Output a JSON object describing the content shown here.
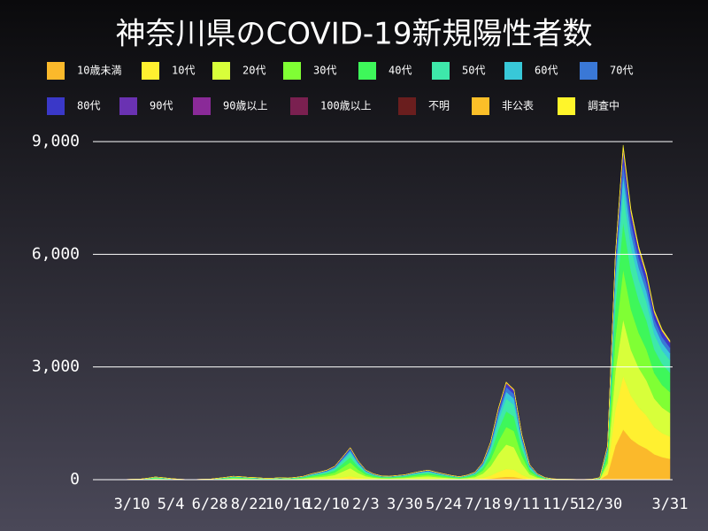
{
  "chart_data": {
    "type": "stacked-area",
    "title": "神奈川県のCOVID-19新規陽性者数",
    "categories": [
      null,
      null,
      null,
      null,
      null,
      "3/10",
      null,
      null,
      null,
      null,
      "5/4",
      null,
      null,
      null,
      null,
      "6/28",
      null,
      null,
      null,
      null,
      "8/22",
      null,
      null,
      null,
      null,
      "10/16",
      null,
      null,
      null,
      null,
      "12/10",
      null,
      null,
      null,
      null,
      "2/3",
      null,
      null,
      null,
      null,
      "3/30",
      null,
      null,
      null,
      null,
      "5/24",
      null,
      null,
      null,
      null,
      "7/18",
      null,
      null,
      null,
      null,
      "9/11",
      null,
      null,
      null,
      null,
      "11/5",
      null,
      null,
      null,
      null,
      "12/30",
      null,
      null,
      null,
      null,
      null,
      null,
      null,
      null,
      "3/31"
    ],
    "ylim": [
      0,
      9000
    ],
    "yticks": [
      0,
      {
        "value": 3000,
        "label": "3,000"
      },
      {
        "value": 6000,
        "label": "6,000"
      },
      {
        "value": 9000,
        "label": "9,000"
      }
    ],
    "grid": true,
    "series": [
      {
        "name": "10歳未満",
        "color": "#fbb92b",
        "values": [
          0,
          0,
          0,
          0,
          0,
          0,
          0,
          1,
          2,
          2,
          1,
          0,
          0,
          0,
          0,
          0,
          1,
          2,
          3,
          2,
          2,
          2,
          1,
          1,
          2,
          1,
          2,
          3,
          5,
          6,
          8,
          11,
          18,
          26,
          15,
          8,
          5,
          3,
          3,
          3,
          4,
          5,
          7,
          8,
          6,
          5,
          3,
          2,
          4,
          6,
          14,
          30,
          57,
          78,
          72,
          36,
          12,
          5,
          2,
          1,
          0,
          0,
          0,
          0,
          0,
          2,
          135,
          900,
          1335,
          1080,
          930,
          825,
          675,
          600,
          555
        ]
      },
      {
        "name": "10代",
        "color": "#fff030",
        "values": [
          0,
          0,
          0,
          0,
          0,
          1,
          1,
          3,
          6,
          4,
          2,
          1,
          0,
          0,
          1,
          1,
          3,
          5,
          7,
          6,
          5,
          4,
          3,
          3,
          4,
          4,
          5,
          7,
          12,
          16,
          20,
          28,
          48,
          68,
          40,
          20,
          12,
          8,
          7,
          9,
          10,
          14,
          18,
          20,
          16,
          12,
          9,
          6,
          10,
          16,
          36,
          80,
          152,
          208,
          192,
          96,
          32,
          12,
          4,
          2,
          1,
          1,
          1,
          1,
          1,
          4,
          144,
          960,
          1424,
          1152,
          992,
          880,
          720,
          640,
          592
        ]
      },
      {
        "name": "20代",
        "color": "#d8ff3a",
        "values": [
          0,
          0,
          0,
          1,
          1,
          3,
          4,
          10,
          18,
          13,
          8,
          4,
          1,
          1,
          3,
          4,
          10,
          15,
          23,
          20,
          15,
          13,
          10,
          10,
          13,
          11,
          15,
          23,
          38,
          50,
          63,
          88,
          150,
          213,
          125,
          63,
          38,
          25,
          23,
          28,
          33,
          45,
          55,
          63,
          50,
          38,
          28,
          20,
          30,
          50,
          113,
          250,
          475,
          650,
          600,
          300,
          100,
          38,
          13,
          5,
          4,
          3,
          2,
          2,
          3,
          13,
          153,
          1020,
          1513,
          1224,
          1054,
          935,
          765,
          680,
          629
        ]
      },
      {
        "name": "30代",
        "color": "#80ff34",
        "values": [
          0,
          0,
          0,
          1,
          1,
          2,
          3,
          7,
          13,
          9,
          5,
          3,
          1,
          1,
          2,
          3,
          7,
          11,
          16,
          14,
          11,
          9,
          7,
          7,
          9,
          8,
          11,
          16,
          27,
          36,
          45,
          63,
          108,
          153,
          90,
          45,
          27,
          18,
          16,
          20,
          23,
          32,
          40,
          45,
          36,
          27,
          20,
          14,
          22,
          36,
          81,
          180,
          342,
          468,
          432,
          216,
          72,
          27,
          9,
          4,
          3,
          2,
          1,
          1,
          2,
          9,
          135,
          900,
          1335,
          1080,
          930,
          825,
          675,
          600,
          555
        ]
      },
      {
        "name": "40代",
        "color": "#3ef75a",
        "values": [
          0,
          0,
          0,
          1,
          1,
          2,
          2,
          6,
          11,
          8,
          5,
          2,
          1,
          1,
          2,
          2,
          6,
          10,
          14,
          13,
          10,
          8,
          6,
          6,
          8,
          7,
          10,
          14,
          24,
          32,
          40,
          56,
          96,
          136,
          80,
          40,
          24,
          16,
          14,
          18,
          21,
          29,
          35,
          40,
          32,
          24,
          18,
          13,
          19,
          32,
          72,
          160,
          304,
          416,
          384,
          192,
          64,
          24,
          8,
          3,
          2,
          2,
          1,
          1,
          2,
          8,
          126,
          840,
          1246,
          1008,
          868,
          770,
          630,
          560,
          518
        ]
      },
      {
        "name": "50代",
        "color": "#3ee8aa",
        "values": [
          0,
          0,
          0,
          1,
          1,
          1,
          2,
          5,
          9,
          7,
          4,
          2,
          1,
          1,
          1,
          2,
          5,
          8,
          12,
          10,
          8,
          7,
          5,
          5,
          7,
          6,
          8,
          12,
          20,
          26,
          33,
          46,
          78,
          111,
          65,
          33,
          20,
          13,
          12,
          14,
          17,
          23,
          29,
          33,
          26,
          20,
          14,
          10,
          16,
          26,
          59,
          130,
          247,
          338,
          312,
          156,
          52,
          20,
          7,
          3,
          2,
          1,
          1,
          1,
          1,
          7,
          81,
          540,
          801,
          648,
          558,
          495,
          405,
          360,
          333
        ]
      },
      {
        "name": "60代",
        "color": "#38c8d8",
        "values": [
          0,
          0,
          0,
          0,
          0,
          1,
          1,
          3,
          5,
          4,
          2,
          1,
          0,
          0,
          1,
          1,
          3,
          4,
          6,
          6,
          4,
          4,
          3,
          3,
          4,
          3,
          4,
          6,
          11,
          14,
          18,
          25,
          42,
          60,
          35,
          18,
          11,
          7,
          6,
          8,
          9,
          13,
          15,
          18,
          14,
          11,
          8,
          6,
          8,
          14,
          32,
          70,
          133,
          182,
          168,
          84,
          28,
          11,
          4,
          1,
          1,
          1,
          1,
          1,
          1,
          4,
          45,
          300,
          445,
          360,
          310,
          275,
          225,
          200,
          185
        ]
      },
      {
        "name": "70代",
        "color": "#3a78d6",
        "values": [
          0,
          0,
          0,
          0,
          0,
          1,
          1,
          2,
          4,
          3,
          2,
          1,
          0,
          0,
          1,
          1,
          2,
          3,
          5,
          4,
          3,
          3,
          2,
          2,
          3,
          2,
          3,
          5,
          8,
          10,
          13,
          18,
          30,
          43,
          25,
          13,
          8,
          5,
          5,
          6,
          7,
          9,
          11,
          13,
          10,
          8,
          6,
          4,
          6,
          10,
          23,
          50,
          95,
          130,
          120,
          60,
          20,
          8,
          3,
          1,
          1,
          1,
          0,
          0,
          1,
          3,
          36,
          240,
          356,
          288,
          248,
          220,
          180,
          160,
          148
        ]
      },
      {
        "name": "80代",
        "color": "#3a38c8",
        "values": [
          0,
          0,
          0,
          0,
          0,
          0,
          0,
          1,
          2,
          2,
          1,
          0,
          0,
          0,
          0,
          0,
          1,
          2,
          3,
          2,
          2,
          2,
          1,
          1,
          2,
          1,
          2,
          3,
          5,
          6,
          8,
          11,
          18,
          26,
          15,
          8,
          5,
          3,
          3,
          3,
          4,
          5,
          7,
          8,
          6,
          5,
          3,
          2,
          4,
          6,
          14,
          30,
          57,
          78,
          72,
          36,
          12,
          5,
          2,
          1,
          0,
          0,
          0,
          0,
          0,
          2,
          27,
          180,
          267,
          216,
          186,
          165,
          135,
          120,
          111
        ]
      },
      {
        "name": "90代",
        "color": "#6a32b2",
        "values": [
          0,
          0,
          0,
          0,
          0,
          0,
          0,
          0,
          1,
          1,
          0,
          0,
          0,
          0,
          0,
          0,
          0,
          1,
          1,
          1,
          1,
          1,
          0,
          0,
          1,
          0,
          1,
          1,
          2,
          2,
          3,
          4,
          6,
          9,
          5,
          3,
          2,
          1,
          1,
          1,
          1,
          2,
          2,
          3,
          2,
          2,
          1,
          1,
          1,
          2,
          5,
          10,
          19,
          26,
          24,
          12,
          4,
          2,
          1,
          0,
          0,
          0,
          0,
          0,
          0,
          1,
          9,
          60,
          89,
          72,
          62,
          55,
          45,
          40,
          37
        ]
      },
      {
        "name": "90歳以上",
        "color": "#8a2a98",
        "values": [
          0,
          0,
          0,
          0,
          0,
          0,
          0,
          0,
          0,
          0,
          0,
          0,
          0,
          0,
          0,
          0,
          0,
          0,
          0,
          0,
          0,
          0,
          0,
          0,
          0,
          0,
          0,
          0,
          0,
          0,
          0,
          0,
          0,
          0,
          0,
          0,
          0,
          0,
          0,
          0,
          0,
          0,
          0,
          0,
          0,
          0,
          0,
          0,
          0,
          0,
          0,
          0,
          0,
          0,
          0,
          0,
          0,
          0,
          0,
          0,
          0,
          0,
          0,
          0,
          0,
          0,
          0,
          5,
          8,
          6,
          5,
          4,
          3,
          3,
          3
        ]
      },
      {
        "name": "100歳以上",
        "color": "#7a2050",
        "values": [
          0,
          0,
          0,
          0,
          0,
          0,
          0,
          0,
          0,
          0,
          0,
          0,
          0,
          0,
          0,
          0,
          0,
          0,
          0,
          0,
          0,
          0,
          0,
          0,
          0,
          0,
          0,
          0,
          0,
          0,
          0,
          0,
          0,
          0,
          0,
          0,
          0,
          0,
          0,
          0,
          0,
          0,
          0,
          0,
          0,
          0,
          0,
          0,
          0,
          0,
          0,
          0,
          0,
          0,
          0,
          0,
          0,
          0,
          0,
          0,
          0,
          0,
          0,
          0,
          0,
          0,
          0,
          0,
          0,
          0,
          0,
          0,
          0,
          0,
          0
        ]
      },
      {
        "name": "不明",
        "color": "#6a1e1e",
        "values": [
          0,
          0,
          0,
          0,
          0,
          0,
          0,
          0,
          0,
          0,
          0,
          0,
          0,
          0,
          0,
          0,
          0,
          0,
          0,
          0,
          0,
          0,
          0,
          0,
          0,
          0,
          0,
          0,
          0,
          0,
          0,
          0,
          0,
          0,
          0,
          0,
          0,
          0,
          0,
          0,
          0,
          0,
          0,
          0,
          0,
          0,
          0,
          0,
          0,
          0,
          0,
          0,
          0,
          0,
          0,
          0,
          0,
          0,
          0,
          0,
          0,
          0,
          0,
          0,
          0,
          0,
          0,
          0,
          0,
          0,
          0,
          0,
          0,
          0,
          0
        ]
      },
      {
        "name": "非公表",
        "color": "#fbbf28",
        "values": [
          0,
          0,
          0,
          0,
          0,
          0,
          0,
          0,
          1,
          1,
          0,
          0,
          0,
          0,
          0,
          0,
          0,
          1,
          1,
          1,
          1,
          1,
          0,
          0,
          1,
          0,
          1,
          1,
          2,
          2,
          3,
          4,
          6,
          9,
          5,
          3,
          2,
          1,
          1,
          1,
          1,
          2,
          2,
          3,
          2,
          2,
          1,
          1,
          1,
          2,
          5,
          10,
          19,
          26,
          24,
          12,
          4,
          2,
          1,
          0,
          0,
          0,
          0,
          0,
          0,
          1,
          0,
          0,
          0,
          0,
          0,
          0,
          0,
          0,
          0
        ]
      },
      {
        "name": "調査中",
        "color": "#fff52a",
        "values": [
          0,
          0,
          0,
          0,
          0,
          0,
          0,
          0,
          0,
          0,
          0,
          0,
          0,
          0,
          0,
          0,
          0,
          0,
          0,
          0,
          0,
          0,
          0,
          0,
          0,
          0,
          0,
          0,
          0,
          0,
          0,
          0,
          0,
          0,
          0,
          0,
          0,
          0,
          0,
          0,
          0,
          0,
          0,
          0,
          0,
          0,
          0,
          0,
          0,
          0,
          0,
          0,
          0,
          0,
          0,
          0,
          0,
          0,
          0,
          0,
          0,
          0,
          0,
          0,
          0,
          0,
          9,
          60,
          89,
          72,
          62,
          55,
          45,
          40,
          37
        ]
      }
    ]
  }
}
